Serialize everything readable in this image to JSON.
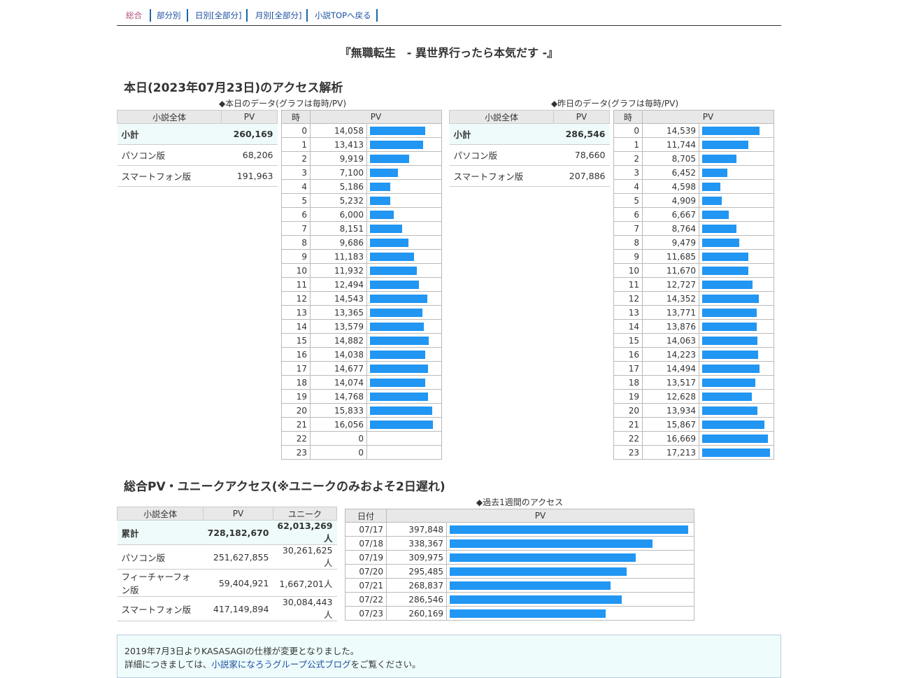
{
  "nav": {
    "items": [
      {
        "label": "総合",
        "current": true
      },
      {
        "label": "部分別",
        "current": false
      },
      {
        "label": "日別[全部分]",
        "current": false
      },
      {
        "label": "月別[全部分]",
        "current": false
      },
      {
        "label": "小説TOPへ戻る",
        "current": false
      }
    ]
  },
  "novel_title": "『無職転生　- 異世界行ったら本気だす -』",
  "access_section_title": "本日(2023年07月23日)のアクセス解析",
  "today": {
    "caption": "◆本日のデータ(グラフは毎時/PV)",
    "summary": {
      "headers": [
        "小説全体",
        "PV"
      ],
      "rows": [
        {
          "label": "小計",
          "value": "260,169"
        },
        {
          "label": "パソコン版",
          "value": "68,206"
        },
        {
          "label": "スマートフォン版",
          "value": "191,963"
        }
      ]
    },
    "hourly": {
      "headers": [
        "時",
        "PV"
      ],
      "rows": [
        {
          "hour": "0",
          "pv": "14,058",
          "n": 14058
        },
        {
          "hour": "1",
          "pv": "13,413",
          "n": 13413
        },
        {
          "hour": "2",
          "pv": "9,919",
          "n": 9919
        },
        {
          "hour": "3",
          "pv": "7,100",
          "n": 7100
        },
        {
          "hour": "4",
          "pv": "5,186",
          "n": 5186
        },
        {
          "hour": "5",
          "pv": "5,232",
          "n": 5232
        },
        {
          "hour": "6",
          "pv": "6,000",
          "n": 6000
        },
        {
          "hour": "7",
          "pv": "8,151",
          "n": 8151
        },
        {
          "hour": "8",
          "pv": "9,686",
          "n": 9686
        },
        {
          "hour": "9",
          "pv": "11,183",
          "n": 11183
        },
        {
          "hour": "10",
          "pv": "11,932",
          "n": 11932
        },
        {
          "hour": "11",
          "pv": "12,494",
          "n": 12494
        },
        {
          "hour": "12",
          "pv": "14,543",
          "n": 14543
        },
        {
          "hour": "13",
          "pv": "13,365",
          "n": 13365
        },
        {
          "hour": "14",
          "pv": "13,579",
          "n": 13579
        },
        {
          "hour": "15",
          "pv": "14,882",
          "n": 14882
        },
        {
          "hour": "16",
          "pv": "14,038",
          "n": 14038
        },
        {
          "hour": "17",
          "pv": "14,677",
          "n": 14677
        },
        {
          "hour": "18",
          "pv": "14,074",
          "n": 14074
        },
        {
          "hour": "19",
          "pv": "14,768",
          "n": 14768
        },
        {
          "hour": "20",
          "pv": "15,833",
          "n": 15833
        },
        {
          "hour": "21",
          "pv": "16,056",
          "n": 16056
        },
        {
          "hour": "22",
          "pv": "0",
          "n": 0
        },
        {
          "hour": "23",
          "pv": "0",
          "n": 0
        }
      ]
    }
  },
  "yesterday": {
    "caption": "◆昨日のデータ(グラフは毎時/PV)",
    "summary": {
      "headers": [
        "小説全体",
        "PV"
      ],
      "rows": [
        {
          "label": "小計",
          "value": "286,546"
        },
        {
          "label": "パソコン版",
          "value": "78,660"
        },
        {
          "label": "スマートフォン版",
          "value": "207,886"
        }
      ]
    },
    "hourly": {
      "headers": [
        "時",
        "PV"
      ],
      "rows": [
        {
          "hour": "0",
          "pv": "14,539",
          "n": 14539
        },
        {
          "hour": "1",
          "pv": "11,744",
          "n": 11744
        },
        {
          "hour": "2",
          "pv": "8,705",
          "n": 8705
        },
        {
          "hour": "3",
          "pv": "6,452",
          "n": 6452
        },
        {
          "hour": "4",
          "pv": "4,598",
          "n": 4598
        },
        {
          "hour": "5",
          "pv": "4,909",
          "n": 4909
        },
        {
          "hour": "6",
          "pv": "6,667",
          "n": 6667
        },
        {
          "hour": "7",
          "pv": "8,764",
          "n": 8764
        },
        {
          "hour": "8",
          "pv": "9,479",
          "n": 9479
        },
        {
          "hour": "9",
          "pv": "11,685",
          "n": 11685
        },
        {
          "hour": "10",
          "pv": "11,670",
          "n": 11670
        },
        {
          "hour": "11",
          "pv": "12,727",
          "n": 12727
        },
        {
          "hour": "12",
          "pv": "14,352",
          "n": 14352
        },
        {
          "hour": "13",
          "pv": "13,771",
          "n": 13771
        },
        {
          "hour": "14",
          "pv": "13,876",
          "n": 13876
        },
        {
          "hour": "15",
          "pv": "14,063",
          "n": 14063
        },
        {
          "hour": "16",
          "pv": "14,223",
          "n": 14223
        },
        {
          "hour": "17",
          "pv": "14,494",
          "n": 14494
        },
        {
          "hour": "18",
          "pv": "13,517",
          "n": 13517
        },
        {
          "hour": "19",
          "pv": "12,628",
          "n": 12628
        },
        {
          "hour": "20",
          "pv": "13,934",
          "n": 13934
        },
        {
          "hour": "21",
          "pv": "15,867",
          "n": 15867
        },
        {
          "hour": "22",
          "pv": "16,669",
          "n": 16669
        },
        {
          "hour": "23",
          "pv": "17,213",
          "n": 17213
        }
      ]
    }
  },
  "total_section_title": "総合PV・ユニークアクセス(※ユニークのみおよそ2日遅れ)",
  "totals": {
    "headers": [
      "小説全体",
      "PV",
      "ユニーク"
    ],
    "rows": [
      {
        "label": "累計",
        "pv": "728,182,670",
        "unique": "62,013,269人"
      },
      {
        "label": "パソコン版",
        "pv": "251,627,855",
        "unique": "30,261,625人"
      },
      {
        "label": "フィーチャーフォン版",
        "pv": "59,404,921",
        "unique": "1,667,201人"
      },
      {
        "label": "スマートフォン版",
        "pv": "417,149,894",
        "unique": "30,084,443人"
      }
    ]
  },
  "weekly": {
    "caption": "◆過去1週間のアクセス",
    "headers": [
      "日付",
      "PV"
    ],
    "rows": [
      {
        "date": "07/17",
        "pv": "397,848",
        "n": 397848
      },
      {
        "date": "07/18",
        "pv": "338,367",
        "n": 338367
      },
      {
        "date": "07/19",
        "pv": "309,975",
        "n": 309975
      },
      {
        "date": "07/20",
        "pv": "295,485",
        "n": 295485
      },
      {
        "date": "07/21",
        "pv": "268,837",
        "n": 268837
      },
      {
        "date": "07/22",
        "pv": "286,546",
        "n": 286546
      },
      {
        "date": "07/23",
        "pv": "260,169",
        "n": 260169
      }
    ]
  },
  "notice": {
    "line1": "2019年7月3日よりKASASAGIの仕様が変更となりました。",
    "line2_prefix": "詳細につきましては、",
    "line2_link": "小説家になろうグループ公式ブログ",
    "line2_suffix": "をご覧ください。"
  },
  "colors": {
    "bar": "#2196f3",
    "subtotal_bg": "#effbfb",
    "header_bg": "#e8e8e8",
    "nav_current": "#b0507a",
    "link": "#1a4fa0"
  }
}
